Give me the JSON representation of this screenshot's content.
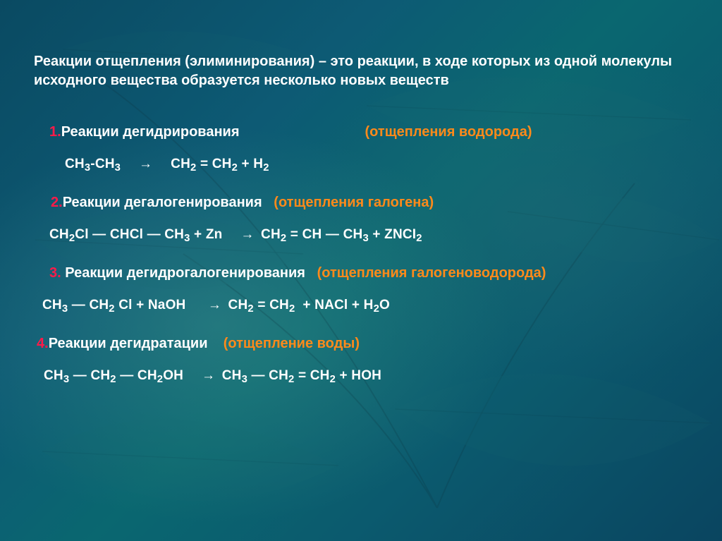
{
  "colors": {
    "background_base": "#0a546e",
    "text_primary": "#ffffff",
    "accent_number": "#ff1a49",
    "accent_sub": "#ff8a1a"
  },
  "typography": {
    "family": "Arial",
    "heading_size_pt": 15,
    "title_size_pt": 15,
    "equation_size_pt": 14,
    "weight": "bold"
  },
  "heading": {
    "text": "Реакции отщепления (элиминирования) – это реакции, в ходе которых из одной молекулы исходного вещества образуется несколько новых веществ"
  },
  "sections": [
    {
      "num": "1.",
      "name": "Реакции дегидрирования",
      "sub": "(отщепления водорода)",
      "equation_html": "CH<span class='sub3'>3</span>-CH<span class='sub3'>3</span>&nbsp;&nbsp;&nbsp;&nbsp;<span class='arrow'>→</span>&nbsp;&nbsp;&nbsp;&nbsp;CH<span class='sub3'>2</span> = CH<span class='sub3'>2</span> + H<span class='sub3'>2</span>"
    },
    {
      "num": "2.",
      "name": "Реакции дегалогенирования",
      "sub": "(отщепления галогена)",
      "equation_html": "CH<span class='sub3'>2</span>Cl ― CHCl ― CH<span class='sub3'>3</span> + Zn&nbsp;&nbsp;&nbsp;&nbsp;<span class='arrow'>→</span> CH<span class='sub3'>2</span> = CH ― CH<span class='sub3'>3</span> + ZNCI<span class='sub3'>2</span>"
    },
    {
      "num": "3.",
      "name": " Реакции дегидрогалогенирования",
      "sub": "(отщепления галогеноводорода)",
      "equation_html": "CH<span class='sub3'>3</span> ― CH<span class='sub3'>2</span> Cl + NaOH&nbsp;&nbsp;&nbsp;&nbsp;&nbsp;<span class='arrow'>→</span> CH<span class='sub3'>2</span> = CH<span class='sub3'>2</span>&nbsp;&nbsp;+ NACl + H<span class='sub3'>2</span>O"
    },
    {
      "num": "4.",
      "name": "Реакции дегидратации",
      "sub": "(отщепление воды)",
      "equation_html": "CH<span class='sub3'>3</span> ― CH<span class='sub3'>2</span> ― CH<span class='sub3'>2</span>OH&nbsp;&nbsp;&nbsp;&nbsp;<span class='arrow'>→</span> CH<span class='sub3'>3</span> ― CH<span class='sub3'>2</span> = CH<span class='sub3'>2</span> + HOH"
    }
  ]
}
